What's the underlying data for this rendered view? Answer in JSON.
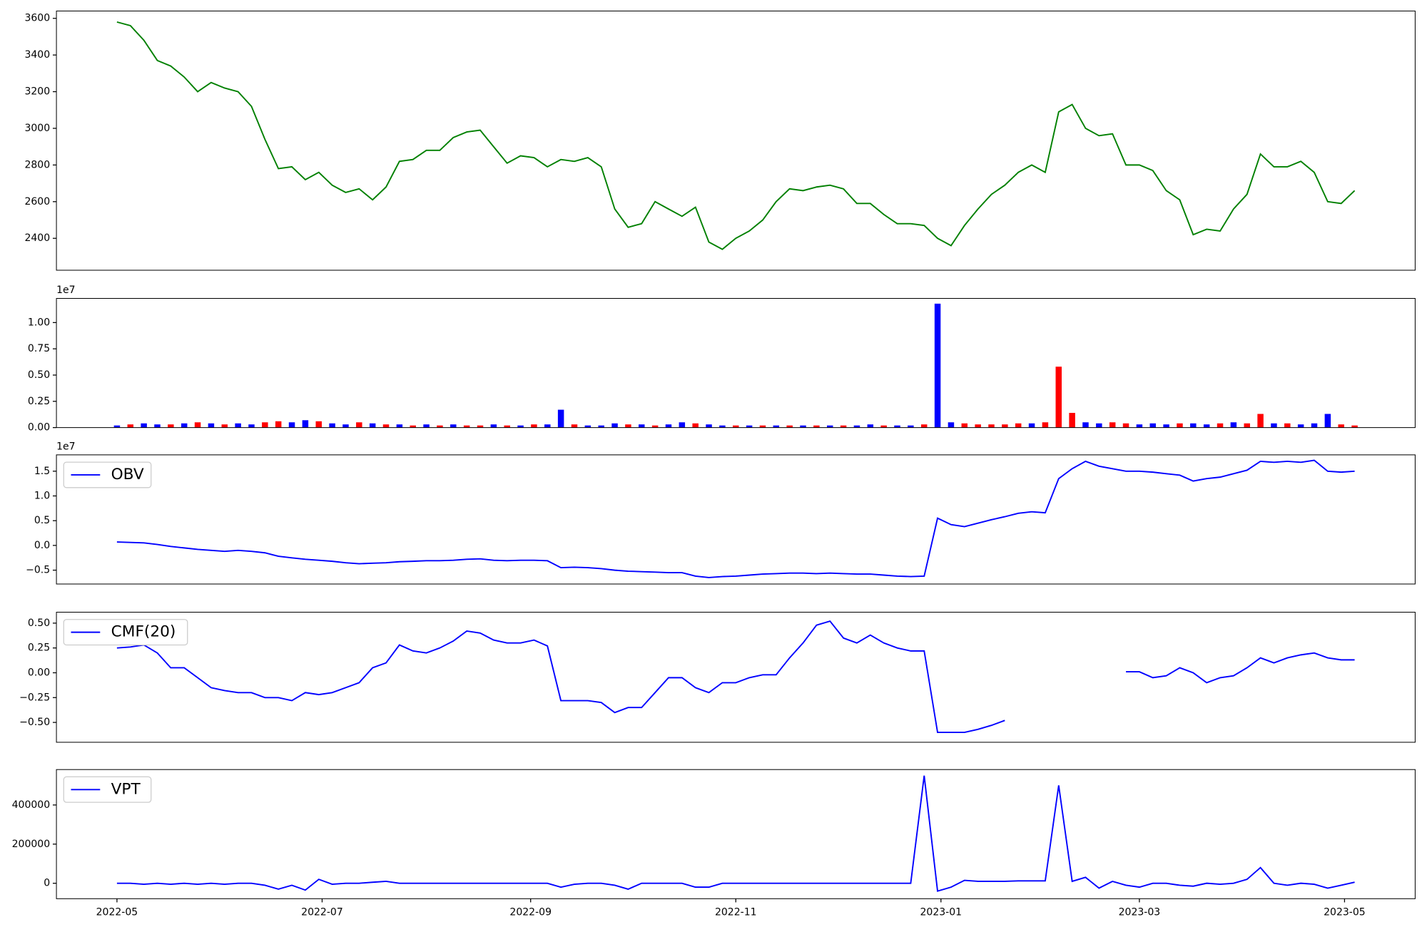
{
  "chart_data": [
    {
      "type": "line",
      "color": "green",
      "x": [
        0,
        4,
        8,
        12,
        16,
        20,
        24,
        28,
        32,
        36,
        40,
        44,
        48,
        52,
        56,
        60,
        64,
        68,
        72,
        76,
        80,
        84,
        88,
        92,
        96,
        100,
        104,
        108,
        112,
        116,
        120,
        124,
        128,
        132,
        136,
        140,
        144,
        148,
        152,
        156,
        160,
        164,
        168,
        172,
        176,
        180,
        184,
        188,
        192,
        196,
        200,
        204,
        208,
        212,
        216,
        220,
        224,
        228,
        232,
        236,
        240,
        244,
        248,
        252,
        256,
        260,
        264,
        268,
        272,
        276,
        280,
        284,
        288,
        292,
        296,
        300,
        304,
        308,
        312,
        316,
        320,
        324,
        328,
        332,
        336,
        340,
        344,
        348,
        352,
        356,
        360,
        364,
        368
      ],
      "values": [
        3580,
        3560,
        3480,
        3370,
        3340,
        3280,
        3200,
        3250,
        3220,
        3200,
        3120,
        2940,
        2780,
        2790,
        2720,
        2760,
        2690,
        2650,
        2670,
        2610,
        2680,
        2820,
        2830,
        2880,
        2880,
        2950,
        2980,
        2990,
        2900,
        2810,
        2850,
        2840,
        2790,
        2830,
        2820,
        2840,
        2790,
        2560,
        2460,
        2480,
        2600,
        2560,
        2520,
        2570,
        2380,
        2340,
        2400,
        2440,
        2500,
        2600,
        2670,
        2660,
        2680,
        2690,
        2670,
        2590,
        2590,
        2530,
        2480,
        2480,
        2470,
        2400,
        2360,
        2470,
        2560,
        2640,
        2690,
        2760,
        2800,
        2760,
        3090,
        3130,
        3000,
        2960,
        2970,
        2800,
        2800,
        2770,
        2660,
        2610,
        2420,
        2450,
        2440,
        2560,
        2640,
        2860,
        2790,
        2790,
        2820,
        2760,
        2600,
        2590,
        2660
      ],
      "xlim": [
        -18,
        386
      ],
      "ylim": [
        2226,
        3640
      ],
      "yticks": [
        2400,
        2600,
        2800,
        3000,
        3200,
        3400,
        3600
      ]
    },
    {
      "type": "bar",
      "offset_text": "1e7",
      "x": [
        0,
        4,
        8,
        12,
        16,
        20,
        24,
        28,
        32,
        36,
        40,
        44,
        48,
        52,
        56,
        60,
        64,
        68,
        72,
        76,
        80,
        84,
        88,
        92,
        96,
        100,
        104,
        108,
        112,
        116,
        120,
        124,
        128,
        132,
        136,
        140,
        144,
        148,
        152,
        156,
        160,
        164,
        168,
        172,
        176,
        180,
        184,
        188,
        192,
        196,
        200,
        204,
        208,
        212,
        216,
        220,
        224,
        228,
        232,
        236,
        240,
        244,
        248,
        252,
        256,
        260,
        264,
        268,
        272,
        276,
        280,
        284,
        288,
        292,
        296,
        300,
        304,
        308,
        312,
        316,
        320,
        324,
        328,
        332,
        336,
        340,
        344,
        348,
        352,
        356,
        360,
        364,
        368
      ],
      "values": [
        0.02,
        0.03,
        0.04,
        0.03,
        0.03,
        0.04,
        0.05,
        0.04,
        0.03,
        0.04,
        0.03,
        0.05,
        0.06,
        0.05,
        0.07,
        0.06,
        0.04,
        0.03,
        0.05,
        0.04,
        0.03,
        0.03,
        0.02,
        0.03,
        0.02,
        0.03,
        0.02,
        0.02,
        0.03,
        0.02,
        0.02,
        0.03,
        0.03,
        0.17,
        0.03,
        0.02,
        0.02,
        0.04,
        0.03,
        0.03,
        0.02,
        0.03,
        0.05,
        0.04,
        0.03,
        0.02,
        0.02,
        0.02,
        0.02,
        0.02,
        0.02,
        0.02,
        0.02,
        0.02,
        0.02,
        0.02,
        0.03,
        0.02,
        0.02,
        0.02,
        0.03,
        1.18,
        0.05,
        0.04,
        0.03,
        0.03,
        0.03,
        0.04,
        0.04,
        0.05,
        0.58,
        0.14,
        0.05,
        0.04,
        0.05,
        0.04,
        0.03,
        0.04,
        0.03,
        0.04,
        0.04,
        0.03,
        0.04,
        0.05,
        0.04,
        0.13,
        0.04,
        0.04,
        0.03,
        0.04,
        0.13,
        0.03,
        0.02
      ],
      "colors": [
        "blue",
        "red",
        "blue",
        "blue",
        "red",
        "blue",
        "red",
        "blue",
        "red",
        "blue",
        "blue",
        "red",
        "red",
        "blue",
        "blue",
        "red",
        "blue",
        "blue",
        "red",
        "blue",
        "red",
        "blue",
        "red",
        "blue",
        "red",
        "blue",
        "red",
        "red",
        "blue",
        "red",
        "blue",
        "red",
        "blue",
        "blue",
        "red",
        "blue",
        "blue",
        "blue",
        "red",
        "blue",
        "red",
        "blue",
        "blue",
        "red",
        "blue",
        "blue",
        "red",
        "blue",
        "red",
        "blue",
        "red",
        "blue",
        "red",
        "blue",
        "red",
        "blue",
        "blue",
        "red",
        "blue",
        "blue",
        "red",
        "blue",
        "blue",
        "red",
        "red",
        "red",
        "red",
        "red",
        "blue",
        "red",
        "red",
        "red",
        "blue",
        "blue",
        "red",
        "red",
        "blue",
        "blue",
        "blue",
        "red",
        "blue",
        "blue",
        "red",
        "blue",
        "red",
        "red",
        "blue",
        "red",
        "blue",
        "blue",
        "blue",
        "red",
        "red"
      ],
      "xlim": [
        -18,
        386
      ],
      "ylim": [
        0,
        1.23
      ],
      "yticks": [
        {
          "value": 0,
          "label": "0.00"
        },
        {
          "value": 0.25,
          "label": "0.25"
        },
        {
          "value": 0.5,
          "label": "0.50"
        },
        {
          "value": 0.75,
          "label": "0.75"
        },
        {
          "value": 1,
          "label": "1.00"
        }
      ]
    },
    {
      "type": "line",
      "offset_text": "1e7",
      "legend": "upper left",
      "x": [
        0,
        4,
        8,
        12,
        16,
        20,
        24,
        28,
        32,
        36,
        40,
        44,
        48,
        52,
        56,
        60,
        64,
        68,
        72,
        76,
        80,
        84,
        88,
        92,
        96,
        100,
        104,
        108,
        112,
        116,
        120,
        124,
        128,
        132,
        136,
        140,
        144,
        148,
        152,
        156,
        160,
        164,
        168,
        172,
        176,
        180,
        184,
        188,
        192,
        196,
        200,
        204,
        208,
        212,
        216,
        220,
        224,
        228,
        232,
        236,
        240,
        244,
        248,
        252,
        256,
        260,
        264,
        268,
        272,
        276,
        280,
        284,
        288,
        292,
        296,
        300,
        304,
        308,
        312,
        316,
        320,
        324,
        328,
        332,
        336,
        340,
        344,
        348,
        352,
        356,
        360,
        364,
        368
      ],
      "series": [
        {
          "name": "OBV",
          "color": "blue",
          "values": [
            0.07,
            0.06,
            0.05,
            0.02,
            -0.02,
            -0.05,
            -0.08,
            -0.1,
            -0.12,
            -0.1,
            -0.12,
            -0.15,
            -0.22,
            -0.25,
            -0.28,
            -0.3,
            -0.32,
            -0.35,
            -0.37,
            -0.36,
            -0.35,
            -0.33,
            -0.32,
            -0.31,
            -0.31,
            -0.3,
            -0.28,
            -0.27,
            -0.3,
            -0.31,
            -0.3,
            -0.3,
            -0.31,
            -0.45,
            -0.44,
            -0.45,
            -0.47,
            -0.5,
            -0.52,
            -0.53,
            -0.54,
            -0.55,
            -0.55,
            -0.62,
            -0.65,
            -0.63,
            -0.62,
            -0.6,
            -0.58,
            -0.57,
            -0.56,
            -0.56,
            -0.57,
            -0.56,
            -0.57,
            -0.58,
            -0.58,
            -0.6,
            -0.62,
            -0.63,
            -0.62,
            0.55,
            0.42,
            0.38,
            0.45,
            0.52,
            0.58,
            0.65,
            0.68,
            0.66,
            1.35,
            1.55,
            1.7,
            1.6,
            1.55,
            1.5,
            1.5,
            1.48,
            1.45,
            1.42,
            1.3,
            1.35,
            1.38,
            1.45,
            1.52,
            1.7,
            1.68,
            1.7,
            1.68,
            1.72,
            1.5,
            1.48,
            1.5
          ]
        }
      ],
      "xlim": [
        -18,
        386
      ],
      "ylim": [
        -0.78,
        1.83
      ],
      "yticks": [
        {
          "value": -0.5,
          "label": "−0.5"
        },
        {
          "value": 0,
          "label": "0.0"
        },
        0.5,
        {
          "value": 1,
          "label": "1.0"
        },
        1.5
      ]
    },
    {
      "type": "line",
      "legend": "upper left",
      "x": [
        0,
        4,
        8,
        12,
        16,
        20,
        24,
        28,
        32,
        36,
        40,
        44,
        48,
        52,
        56,
        60,
        64,
        68,
        72,
        76,
        80,
        84,
        88,
        92,
        96,
        100,
        104,
        108,
        112,
        116,
        120,
        124,
        128,
        132,
        136,
        140,
        144,
        148,
        152,
        156,
        160,
        164,
        168,
        172,
        176,
        180,
        184,
        188,
        192,
        196,
        200,
        204,
        208,
        212,
        216,
        220,
        224,
        228,
        232,
        236,
        240,
        244,
        248,
        252,
        256,
        260,
        264,
        268,
        272,
        276,
        280,
        284,
        288,
        292,
        296,
        300,
        304,
        308,
        312,
        316,
        320,
        324,
        328,
        332,
        336,
        340,
        344,
        348,
        352,
        356,
        360,
        364,
        368
      ],
      "series": [
        {
          "name": "CMF(20)",
          "color": "blue",
          "values": [
            0.25,
            0.26,
            0.28,
            0.2,
            0.05,
            0.05,
            -0.05,
            -0.15,
            -0.18,
            -0.2,
            -0.2,
            -0.25,
            -0.25,
            -0.28,
            -0.2,
            -0.22,
            -0.2,
            -0.15,
            -0.1,
            0.05,
            0.1,
            0.28,
            0.22,
            0.2,
            0.25,
            0.32,
            0.42,
            0.4,
            0.33,
            0.3,
            0.3,
            0.33,
            0.27,
            -0.28,
            -0.28,
            -0.28,
            -0.3,
            -0.4,
            -0.35,
            -0.35,
            -0.2,
            -0.05,
            -0.05,
            -0.15,
            -0.2,
            -0.1,
            -0.1,
            -0.05,
            -0.02,
            -0.02,
            0.15,
            0.3,
            0.48,
            0.52,
            0.35,
            0.3,
            0.38,
            0.3,
            0.25,
            0.22,
            0.22,
            -0.6,
            -0.6,
            -0.6,
            -0.57,
            -0.53,
            -0.48,
            null,
            null,
            null,
            null,
            null,
            null,
            null,
            null,
            0.01,
            0.01,
            -0.05,
            -0.03,
            0.05,
            0.0,
            -0.1,
            -0.05,
            -0.03,
            0.05,
            0.15,
            0.1,
            0.15,
            0.18,
            0.2,
            0.15,
            0.13,
            0.13
          ]
        }
      ],
      "xlim": [
        -18,
        386
      ],
      "ylim": [
        -0.7,
        0.61
      ],
      "yticks": [
        {
          "value": -0.5,
          "label": "−0.50"
        },
        {
          "value": -0.25,
          "label": "−0.25"
        },
        {
          "value": 0,
          "label": "0.00"
        },
        {
          "value": 0.25,
          "label": "0.25"
        },
        {
          "value": 0.5,
          "label": "0.50"
        }
      ]
    },
    {
      "type": "line",
      "legend": "upper left",
      "x": [
        0,
        4,
        8,
        12,
        16,
        20,
        24,
        28,
        32,
        36,
        40,
        44,
        48,
        52,
        56,
        60,
        64,
        68,
        72,
        76,
        80,
        84,
        88,
        92,
        96,
        100,
        104,
        108,
        112,
        116,
        120,
        124,
        128,
        132,
        136,
        140,
        144,
        148,
        152,
        156,
        160,
        164,
        168,
        172,
        176,
        180,
        184,
        188,
        192,
        196,
        200,
        204,
        208,
        212,
        216,
        220,
        224,
        228,
        232,
        236,
        240,
        244,
        248,
        252,
        256,
        260,
        264,
        268,
        272,
        276,
        280,
        284,
        288,
        292,
        296,
        300,
        304,
        308,
        312,
        316,
        320,
        324,
        328,
        332,
        336,
        340,
        344,
        348,
        352,
        356,
        360,
        364,
        368
      ],
      "series": [
        {
          "name": "VPT",
          "color": "blue",
          "values": [
            0,
            0,
            -5000,
            0,
            -5000,
            0,
            -5000,
            0,
            -5000,
            0,
            0,
            -10000,
            -30000,
            -10000,
            -35000,
            20000,
            -5000,
            0,
            0,
            5000,
            10000,
            0,
            0,
            0,
            0,
            0,
            0,
            0,
            0,
            0,
            0,
            0,
            0,
            -20000,
            -5000,
            0,
            0,
            -10000,
            -30000,
            0,
            0,
            0,
            0,
            -20000,
            -20000,
            0,
            0,
            0,
            0,
            0,
            0,
            0,
            0,
            0,
            0,
            0,
            0,
            0,
            0,
            0,
            550000,
            -40000,
            -20000,
            15000,
            10000,
            10000,
            10000,
            12000,
            12000,
            12000,
            500000,
            10000,
            30000,
            -25000,
            10000,
            -10000,
            -20000,
            0,
            0,
            -10000,
            -15000,
            0,
            -5000,
            0,
            20000,
            80000,
            0,
            -10000,
            0,
            -5000,
            -25000,
            -10000,
            5000
          ]
        }
      ],
      "xlim": [
        -18,
        386
      ],
      "ylim": [
        -79000,
        581000
      ],
      "yticks": [
        0,
        200000,
        400000
      ],
      "xticks": [
        {
          "value": 0,
          "label": "2022-05"
        },
        {
          "value": 61,
          "label": "2022-07"
        },
        {
          "value": 123,
          "label": "2022-09"
        },
        {
          "value": 184,
          "label": "2022-11"
        },
        {
          "value": 245,
          "label": "2023-01"
        },
        {
          "value": 304,
          "label": "2023-03"
        },
        {
          "value": 365,
          "label": "2023-05"
        }
      ]
    }
  ]
}
